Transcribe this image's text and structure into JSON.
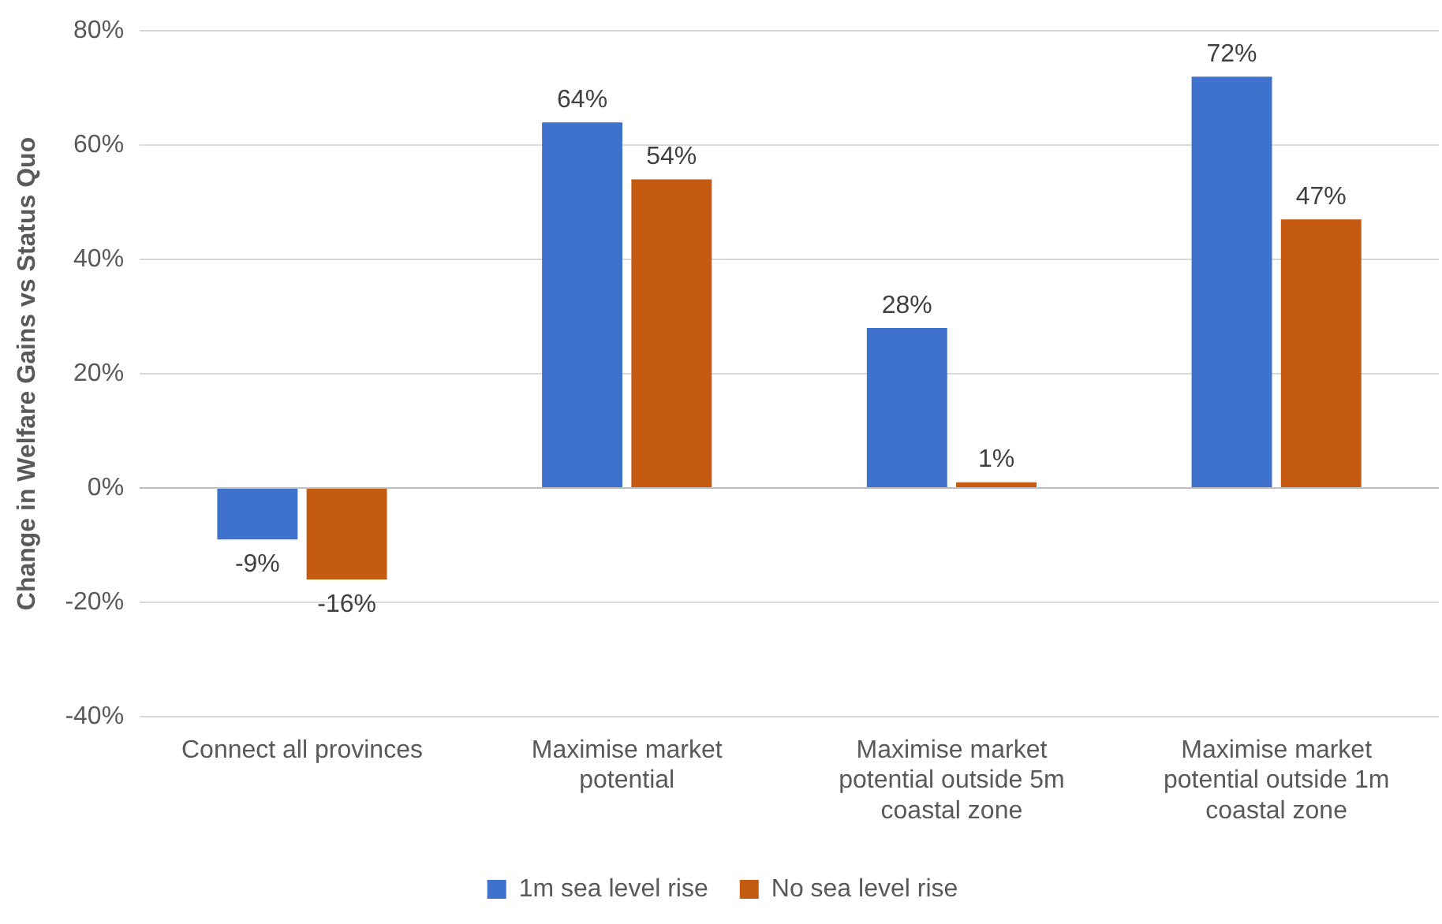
{
  "chart_data": {
    "type": "bar",
    "ylabel": "Change in Welfare Gains vs Status Quo",
    "categories": [
      "Connect all provinces",
      "Maximise market potential",
      "Maximise market potential outside 5m coastal zone",
      "Maximise market potential outside 1m coastal zone"
    ],
    "series": [
      {
        "name": "1m sea level rise",
        "color": "#3f72cc",
        "values": [
          -9,
          64,
          28,
          72
        ],
        "value_labels": [
          "-9%",
          "64%",
          "28%",
          "72%"
        ]
      },
      {
        "name": "No sea level rise",
        "color": "#c55a11",
        "values": [
          -16,
          54,
          1,
          47
        ],
        "value_labels": [
          "-16%",
          "54%",
          "1%",
          "47%"
        ]
      }
    ],
    "ylim": [
      -40,
      80
    ],
    "yticks": [
      {
        "value": -40,
        "label": "-40%"
      },
      {
        "value": -20,
        "label": "-20%"
      },
      {
        "value": 0,
        "label": "0%"
      },
      {
        "value": 20,
        "label": "20%"
      },
      {
        "value": 40,
        "label": "40%"
      },
      {
        "value": 60,
        "label": "60%"
      },
      {
        "value": 80,
        "label": "80%"
      }
    ],
    "grid": "y",
    "legend": "bottom"
  }
}
